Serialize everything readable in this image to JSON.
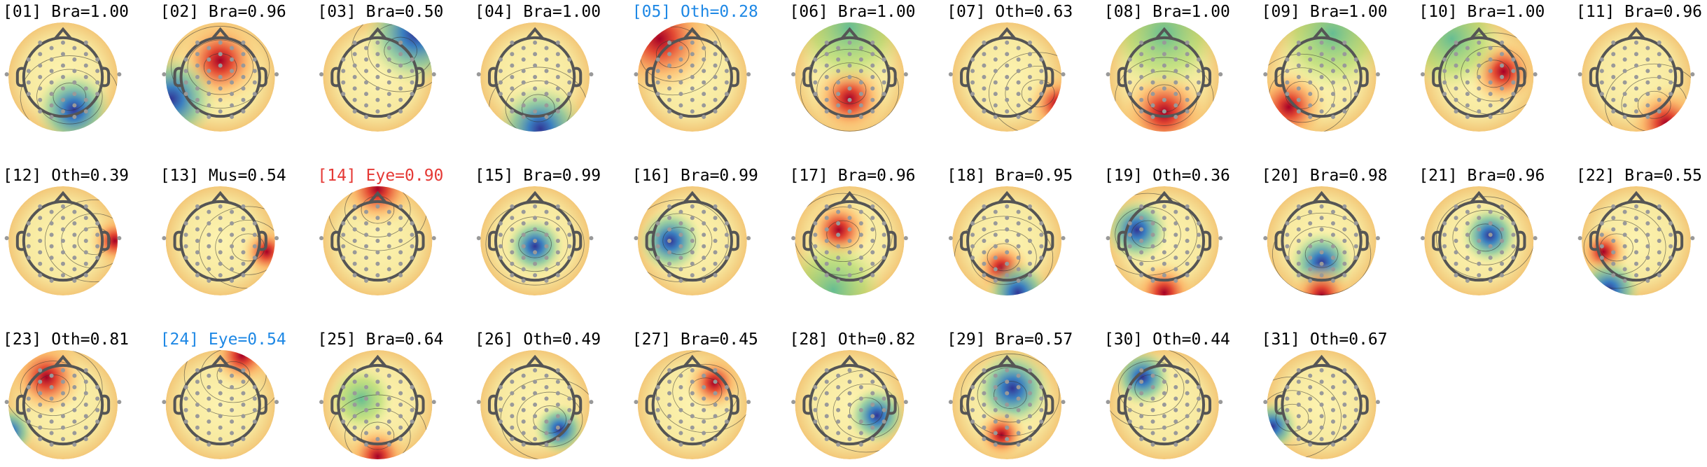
{
  "components": [
    {
      "label": "[01] Bra=1.00",
      "color": "#000000"
    },
    {
      "label": "[02] Bra=0.96",
      "color": "#000000"
    },
    {
      "label": "[03] Bra=0.50",
      "color": "#000000"
    },
    {
      "label": "[04] Bra=1.00",
      "color": "#000000"
    },
    {
      "label": "[05] Oth=0.28",
      "color": "#1e88e5"
    },
    {
      "label": "[06] Bra=1.00",
      "color": "#000000"
    },
    {
      "label": "[07] Oth=0.63",
      "color": "#000000"
    },
    {
      "label": "[08] Bra=1.00",
      "color": "#000000"
    },
    {
      "label": "[09] Bra=1.00",
      "color": "#000000"
    },
    {
      "label": "[10] Bra=1.00",
      "color": "#000000"
    },
    {
      "label": "[11] Bra=0.96",
      "color": "#000000"
    },
    {
      "label": "[12] Oth=0.39",
      "color": "#000000"
    },
    {
      "label": "[13] Mus=0.54",
      "color": "#000000"
    },
    {
      "label": "[14] Eye=0.90",
      "color": "#e53935"
    },
    {
      "label": "[15] Bra=0.99",
      "color": "#000000"
    },
    {
      "label": "[16] Bra=0.99",
      "color": "#000000"
    },
    {
      "label": "[17] Bra=0.96",
      "color": "#000000"
    },
    {
      "label": "[18] Bra=0.95",
      "color": "#000000"
    },
    {
      "label": "[19] Oth=0.36",
      "color": "#000000"
    },
    {
      "label": "[20] Bra=0.98",
      "color": "#000000"
    },
    {
      "label": "[21] Bra=0.96",
      "color": "#000000"
    },
    {
      "label": "[22] Bra=0.55",
      "color": "#000000"
    },
    {
      "label": "[23] Oth=0.81",
      "color": "#000000"
    },
    {
      "label": "[24] Eye=0.54",
      "color": "#1e88e5"
    },
    {
      "label": "[25] Bra=0.64",
      "color": "#000000"
    },
    {
      "label": "[26] Oth=0.49",
      "color": "#000000"
    },
    {
      "label": "[27] Bra=0.45",
      "color": "#000000"
    },
    {
      "label": "[28] Oth=0.82",
      "color": "#000000"
    },
    {
      "label": "[29] Bra=0.57",
      "color": "#000000"
    },
    {
      "label": "[30] Oth=0.44",
      "color": "#000000"
    },
    {
      "label": "[31] Oth=0.67",
      "color": "#000000"
    }
  ]
}
